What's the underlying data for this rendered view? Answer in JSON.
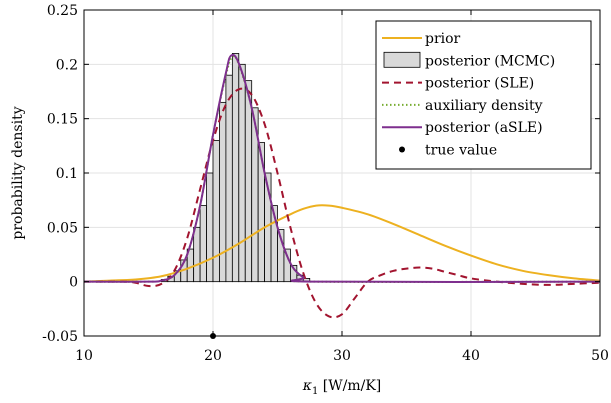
{
  "chart_data": {
    "type": "line",
    "xlabel_symbol": "κ",
    "xlabel_sub": "1",
    "xlabel_unit": " [W/m/K]",
    "ylabel": "probability density",
    "xlim": [
      10,
      50
    ],
    "ylim": [
      -0.05,
      0.25
    ],
    "x_ticks": [
      10,
      20,
      30,
      40,
      50
    ],
    "x_tick_labels": [
      "10",
      "20",
      "30",
      "40",
      "50"
    ],
    "y_ticks": [
      -0.05,
      0,
      0.05,
      0.1,
      0.15,
      0.2,
      0.25
    ],
    "y_tick_labels": [
      "-0.05",
      "0",
      "0.05",
      "0.1",
      "0.15",
      "0.2",
      "0.25"
    ],
    "grid": true,
    "legend_position": "top-right",
    "legend": [
      {
        "key": "prior",
        "label": "prior",
        "style": "line",
        "color": "#EDB120"
      },
      {
        "key": "mcmc",
        "label": "posterior (MCMC)",
        "style": "patch",
        "color": "#D9D9D9"
      },
      {
        "key": "sle",
        "label": "posterior (SLE)",
        "style": "dashed",
        "color": "#A2142F"
      },
      {
        "key": "aux",
        "label": "auxiliary density",
        "style": "dotted",
        "color": "#77AC30"
      },
      {
        "key": "asle",
        "label": "posterior (aSLE)",
        "style": "line",
        "color": "#7E2F8E"
      },
      {
        "key": "true",
        "label": "true value",
        "style": "marker",
        "color": "#000000"
      }
    ],
    "series": [
      {
        "name": "prior",
        "color": "#EDB120",
        "points": [
          [
            10,
            0
          ],
          [
            12,
            0.001
          ],
          [
            14,
            0.002
          ],
          [
            16,
            0.005
          ],
          [
            18,
            0.012
          ],
          [
            20,
            0.022
          ],
          [
            22,
            0.035
          ],
          [
            24,
            0.05
          ],
          [
            26,
            0.062
          ],
          [
            27,
            0.067
          ],
          [
            28,
            0.07
          ],
          [
            29,
            0.07
          ],
          [
            30,
            0.068
          ],
          [
            32,
            0.062
          ],
          [
            34,
            0.053
          ],
          [
            36,
            0.043
          ],
          [
            38,
            0.033
          ],
          [
            40,
            0.024
          ],
          [
            42,
            0.016
          ],
          [
            44,
            0.01
          ],
          [
            46,
            0.006
          ],
          [
            48,
            0.003
          ],
          [
            50,
            0.001
          ]
        ]
      },
      {
        "name": "posterior (SLE)",
        "color": "#A2142F",
        "points": [
          [
            10,
            0
          ],
          [
            13,
            0
          ],
          [
            14,
            -0.001
          ],
          [
            15,
            -0.004
          ],
          [
            16,
            -0.002
          ],
          [
            17,
            0.01
          ],
          [
            18,
            0.04
          ],
          [
            19,
            0.085
          ],
          [
            20,
            0.13
          ],
          [
            21,
            0.163
          ],
          [
            22,
            0.177
          ],
          [
            23,
            0.172
          ],
          [
            24,
            0.145
          ],
          [
            25,
            0.1
          ],
          [
            26,
            0.05
          ],
          [
            27,
            0.008
          ],
          [
            28,
            -0.02
          ],
          [
            29,
            -0.032
          ],
          [
            30,
            -0.03
          ],
          [
            31,
            -0.015
          ],
          [
            32,
            0
          ],
          [
            33,
            0.006
          ],
          [
            34,
            0.01
          ],
          [
            35,
            0.012
          ],
          [
            36,
            0.013
          ],
          [
            37,
            0.012
          ],
          [
            38,
            0.009
          ],
          [
            39,
            0.006
          ],
          [
            40,
            0.003
          ],
          [
            42,
            0
          ],
          [
            44,
            -0.002
          ],
          [
            46,
            -0.003
          ],
          [
            48,
            -0.002
          ],
          [
            50,
            -0.001
          ]
        ]
      },
      {
        "name": "auxiliary density",
        "color": "#77AC30",
        "points": [
          [
            10,
            0
          ],
          [
            15,
            0
          ],
          [
            16,
            0.001
          ],
          [
            17,
            0.006
          ],
          [
            18,
            0.025
          ],
          [
            19,
            0.07
          ],
          [
            20,
            0.135
          ],
          [
            21,
            0.19
          ],
          [
            21.5,
            0.207
          ],
          [
            22,
            0.2
          ],
          [
            23,
            0.16
          ],
          [
            24,
            0.1
          ],
          [
            25,
            0.05
          ],
          [
            26,
            0.017
          ],
          [
            27,
            0.004
          ],
          [
            28,
            0
          ],
          [
            50,
            0
          ]
        ]
      },
      {
        "name": "posterior (aSLE)",
        "color": "#7E2F8E",
        "points": [
          [
            10,
            0
          ],
          [
            15,
            0
          ],
          [
            16,
            0.001
          ],
          [
            17,
            0.006
          ],
          [
            18,
            0.025
          ],
          [
            19,
            0.07
          ],
          [
            20,
            0.135
          ],
          [
            21,
            0.192
          ],
          [
            21.4,
            0.208
          ],
          [
            22,
            0.201
          ],
          [
            23,
            0.16
          ],
          [
            24,
            0.1
          ],
          [
            25,
            0.05
          ],
          [
            26,
            0.017
          ],
          [
            27,
            0.004
          ],
          [
            28,
            0
          ],
          [
            50,
            0
          ]
        ]
      }
    ],
    "histogram": {
      "name": "posterior (MCMC)",
      "color": "#D9D9D9",
      "bin_edges": [
        16,
        16.5,
        17,
        17.5,
        18,
        18.5,
        19,
        19.5,
        20,
        20.5,
        21,
        21.5,
        22,
        22.5,
        23,
        23.5,
        24,
        24.5,
        25,
        25.5,
        26,
        26.5,
        27,
        27.5
      ],
      "values": [
        0.002,
        0.005,
        0.01,
        0.02,
        0.03,
        0.05,
        0.07,
        0.1,
        0.13,
        0.165,
        0.19,
        0.21,
        0.2,
        0.185,
        0.16,
        0.128,
        0.1,
        0.07,
        0.048,
        0.03,
        0.015,
        0.006,
        0.003
      ]
    },
    "true_value": {
      "x": 20,
      "y": -0.05,
      "color": "#000000"
    }
  }
}
